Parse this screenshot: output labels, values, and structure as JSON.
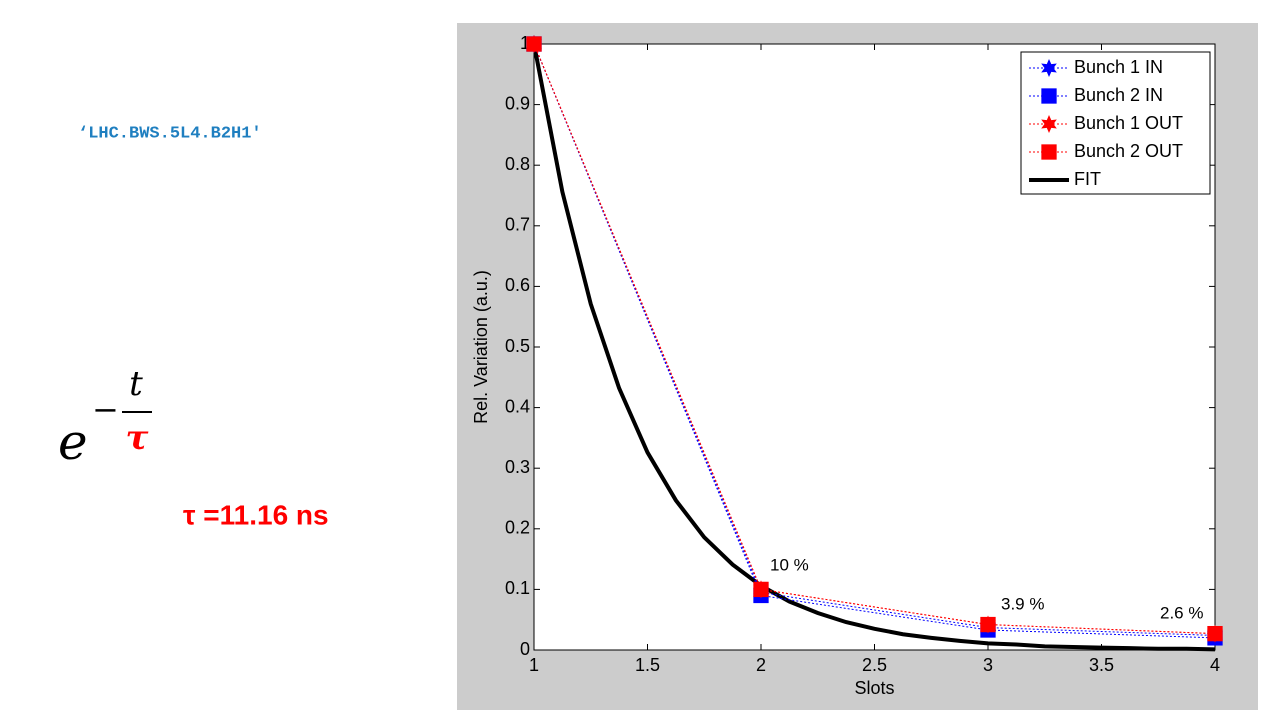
{
  "slide": {
    "label": "‘LHC.BWS.5L4.B2H1'",
    "formula_base": "e",
    "formula_sign": "−",
    "formula_num": "t",
    "formula_den": "τ",
    "tau_text": "τ =11.16 ns"
  },
  "chart_data": {
    "type": "line",
    "xlabel": "Slots",
    "ylabel": "Rel. Variation (a.u.)",
    "x": [
      1,
      2,
      3,
      4
    ],
    "xlim": [
      1,
      4
    ],
    "xticks": [
      1,
      1.5,
      2,
      2.5,
      3,
      3.5,
      4
    ],
    "ylim": [
      0,
      1
    ],
    "yticks": [
      0,
      0.1,
      0.2,
      0.3,
      0.4,
      0.5,
      0.6,
      0.7,
      0.8,
      0.9,
      1
    ],
    "legend": "upper right",
    "series": [
      {
        "name": "Bunch 1 IN",
        "color": "#0000ff",
        "marker": "star",
        "values": [
          1,
          0.095,
          0.037,
          0.024
        ]
      },
      {
        "name": "Bunch 2 IN",
        "color": "#0000ff",
        "marker": "square",
        "values": [
          1,
          0.09,
          0.033,
          0.02
        ]
      },
      {
        "name": "Bunch 1 OUT",
        "color": "#ff0000",
        "marker": "star",
        "values": [
          1,
          0.1,
          0.042,
          0.027
        ]
      },
      {
        "name": "Bunch 2 OUT",
        "color": "#ff0000",
        "marker": "square",
        "values": [
          1,
          0.1,
          0.042,
          0.027
        ]
      },
      {
        "name": "FIT",
        "color": "#000000",
        "marker": "none",
        "x": [
          1,
          1.125,
          1.25,
          1.375,
          1.5,
          1.625,
          1.75,
          1.875,
          2,
          2.125,
          2.25,
          2.375,
          2.5,
          2.625,
          2.75,
          2.875,
          3,
          3.125,
          3.25,
          3.375,
          3.5,
          3.625,
          3.75,
          3.875,
          4
        ],
        "values": [
          1,
          0.756,
          0.571,
          0.432,
          0.326,
          0.247,
          0.186,
          0.141,
          0.106,
          0.08,
          0.061,
          0.046,
          0.035,
          0.026,
          0.02,
          0.015,
          0.011,
          0.009,
          0.006,
          0.005,
          0.004,
          0.003,
          0.002,
          0.002,
          0.001
        ]
      }
    ],
    "annotations": [
      "10 %",
      "3.9 %",
      "2.6 %"
    ]
  }
}
